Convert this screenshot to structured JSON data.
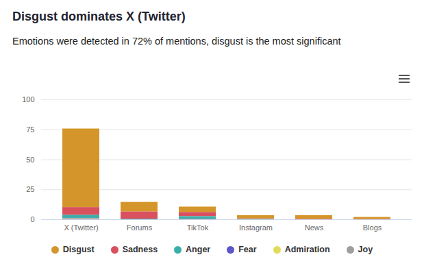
{
  "chart_data": {
    "type": "bar",
    "title": "Disgust dominates X (Twitter)",
    "subtitle": "Emotions were detected in 72% of mentions, disgust is the most significant",
    "categories": [
      "X (Twitter)",
      "Forums",
      "TikTok",
      "Instagram",
      "News",
      "Blogs"
    ],
    "series": [
      {
        "name": "Disgust",
        "color": "#d4962a",
        "values": [
          65.5,
          8,
          4.5,
          2.8,
          3.2,
          1.8
        ]
      },
      {
        "name": "Sadness",
        "color": "#d9505f",
        "values": [
          6.5,
          6,
          3.5,
          0.4,
          0.3,
          0.2
        ]
      },
      {
        "name": "Anger",
        "color": "#3aafa9",
        "values": [
          2.5,
          0.5,
          2,
          0.3,
          0,
          0
        ]
      },
      {
        "name": "Fear",
        "color": "#5b57c8",
        "values": [
          0.4,
          0,
          0.3,
          0,
          0,
          0
        ]
      },
      {
        "name": "Admiration",
        "color": "#e0dc5a",
        "values": [
          0.3,
          0,
          0,
          0,
          0,
          0
        ]
      },
      {
        "name": "Joy",
        "color": "#9e9e9e",
        "values": [
          0.5,
          0,
          0.3,
          0,
          0,
          0
        ]
      }
    ],
    "ylim": [
      0,
      100
    ],
    "yticks": [
      0,
      25,
      50,
      75,
      100
    ],
    "grid": true,
    "stacked": true,
    "legend": "bottom"
  }
}
